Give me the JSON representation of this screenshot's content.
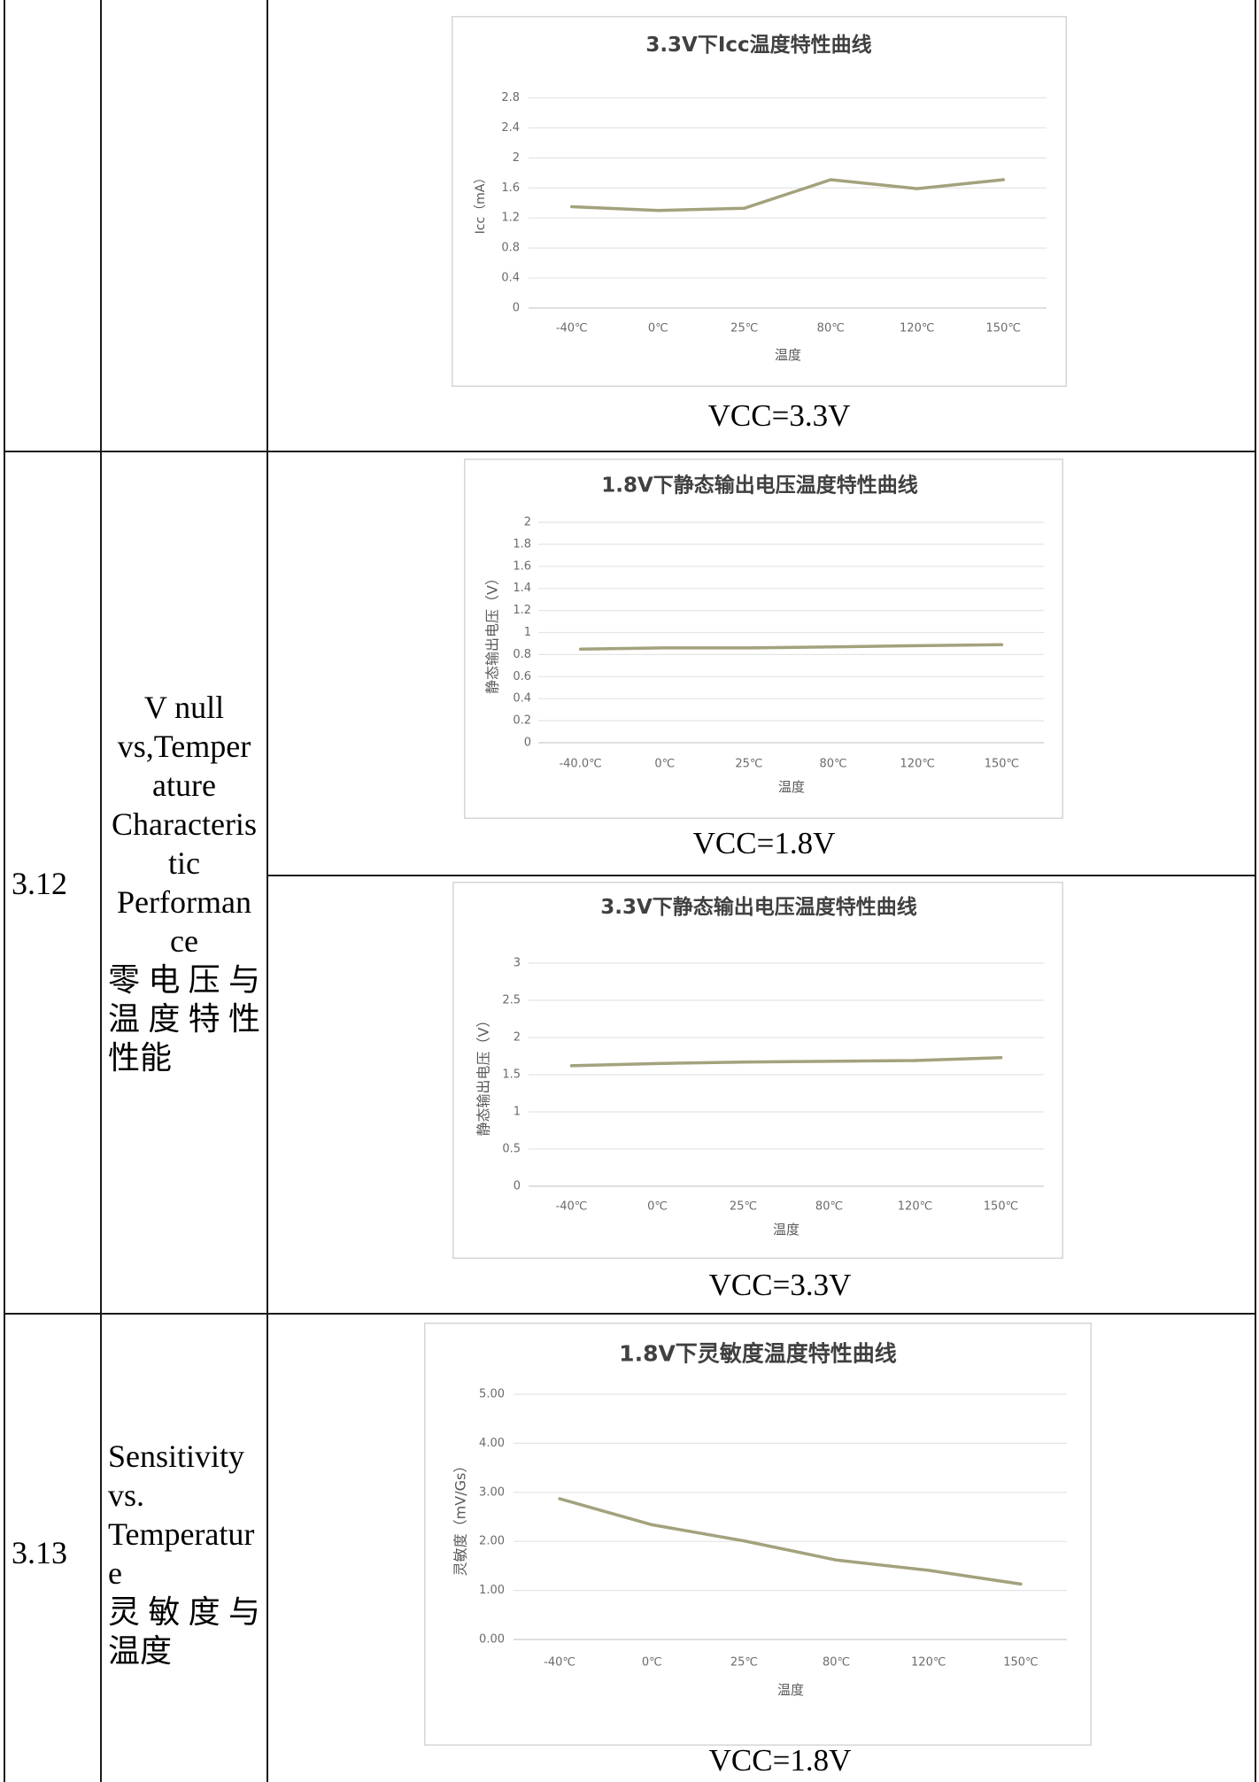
{
  "rows": {
    "icc_row": {
      "caption": "VCC=3.3V"
    },
    "vnull_row": {
      "number": "3.12",
      "name_lines": [
        "V null",
        "vs,Temper",
        "ature",
        "Characteris",
        "tic",
        "Performan",
        "ce",
        "零电压与",
        "温度特性",
        "性能"
      ],
      "caption_1v8": "VCC=1.8V",
      "caption_3v3": "VCC=3.3V"
    },
    "sensitivity_row": {
      "number": "3.13",
      "name_lines": [
        "Sensitivity",
        "vs.",
        "Temperatur",
        "e",
        "灵敏度与",
        "温度"
      ],
      "caption": "VCC=1.8V"
    }
  },
  "colors": {
    "series_line": "#a3a27d",
    "table_border": "#1a1a1a"
  },
  "chart_data": [
    {
      "type": "line",
      "title": "3.3V下Icc温度特性曲线",
      "xlabel": "温度",
      "ylabel": "Icc（mA）",
      "categories": [
        "-40℃",
        "0℃",
        "25℃",
        "80℃",
        "120℃",
        "150℃"
      ],
      "values": [
        1.35,
        1.3,
        1.33,
        1.71,
        1.59,
        1.71
      ],
      "ylim": [
        0,
        2.8
      ],
      "y_tick_labels": [
        "0",
        "0.4",
        "0.8",
        "1.2",
        "1.6",
        "2",
        "2.4",
        "2.8"
      ],
      "grid": true
    },
    {
      "type": "line",
      "title": "1.8V下静态输出电压温度特性曲线",
      "xlabel": "温度",
      "ylabel": "静态输出电压（V）",
      "categories": [
        "-40.0℃",
        "0℃",
        "25℃",
        "80℃",
        "120℃",
        "150℃"
      ],
      "values": [
        0.85,
        0.86,
        0.86,
        0.87,
        0.88,
        0.89
      ],
      "ylim": [
        0,
        2
      ],
      "y_tick_labels": [
        "0",
        "0.2",
        "0.4",
        "0.6",
        "0.8",
        "1",
        "1.2",
        "1.4",
        "1.6",
        "1.8",
        "2"
      ],
      "grid": true
    },
    {
      "type": "line",
      "title": "3.3V下静态输出电压温度特性曲线",
      "xlabel": "温度",
      "ylabel": "静态输出电压（V）",
      "categories": [
        "-40℃",
        "0℃",
        "25℃",
        "80℃",
        "120℃",
        "150℃"
      ],
      "values": [
        1.62,
        1.65,
        1.67,
        1.68,
        1.69,
        1.73
      ],
      "ylim": [
        0,
        3
      ],
      "y_tick_labels": [
        "0",
        "0.5",
        "1",
        "1.5",
        "2",
        "2.5",
        "3"
      ],
      "grid": true
    },
    {
      "type": "line",
      "title": "1.8V下灵敏度温度特性曲线",
      "xlabel": "温度",
      "ylabel": "灵敏度（mV/Gs）",
      "categories": [
        "-40℃",
        "0℃",
        "25℃",
        "80℃",
        "120℃",
        "150℃"
      ],
      "values": [
        2.87,
        2.34,
        2.01,
        1.62,
        1.41,
        1.13
      ],
      "ylim": [
        0,
        5
      ],
      "y_tick_labels": [
        "0.00",
        "1.00",
        "2.00",
        "3.00",
        "4.00",
        "5.00"
      ],
      "grid": true
    }
  ]
}
